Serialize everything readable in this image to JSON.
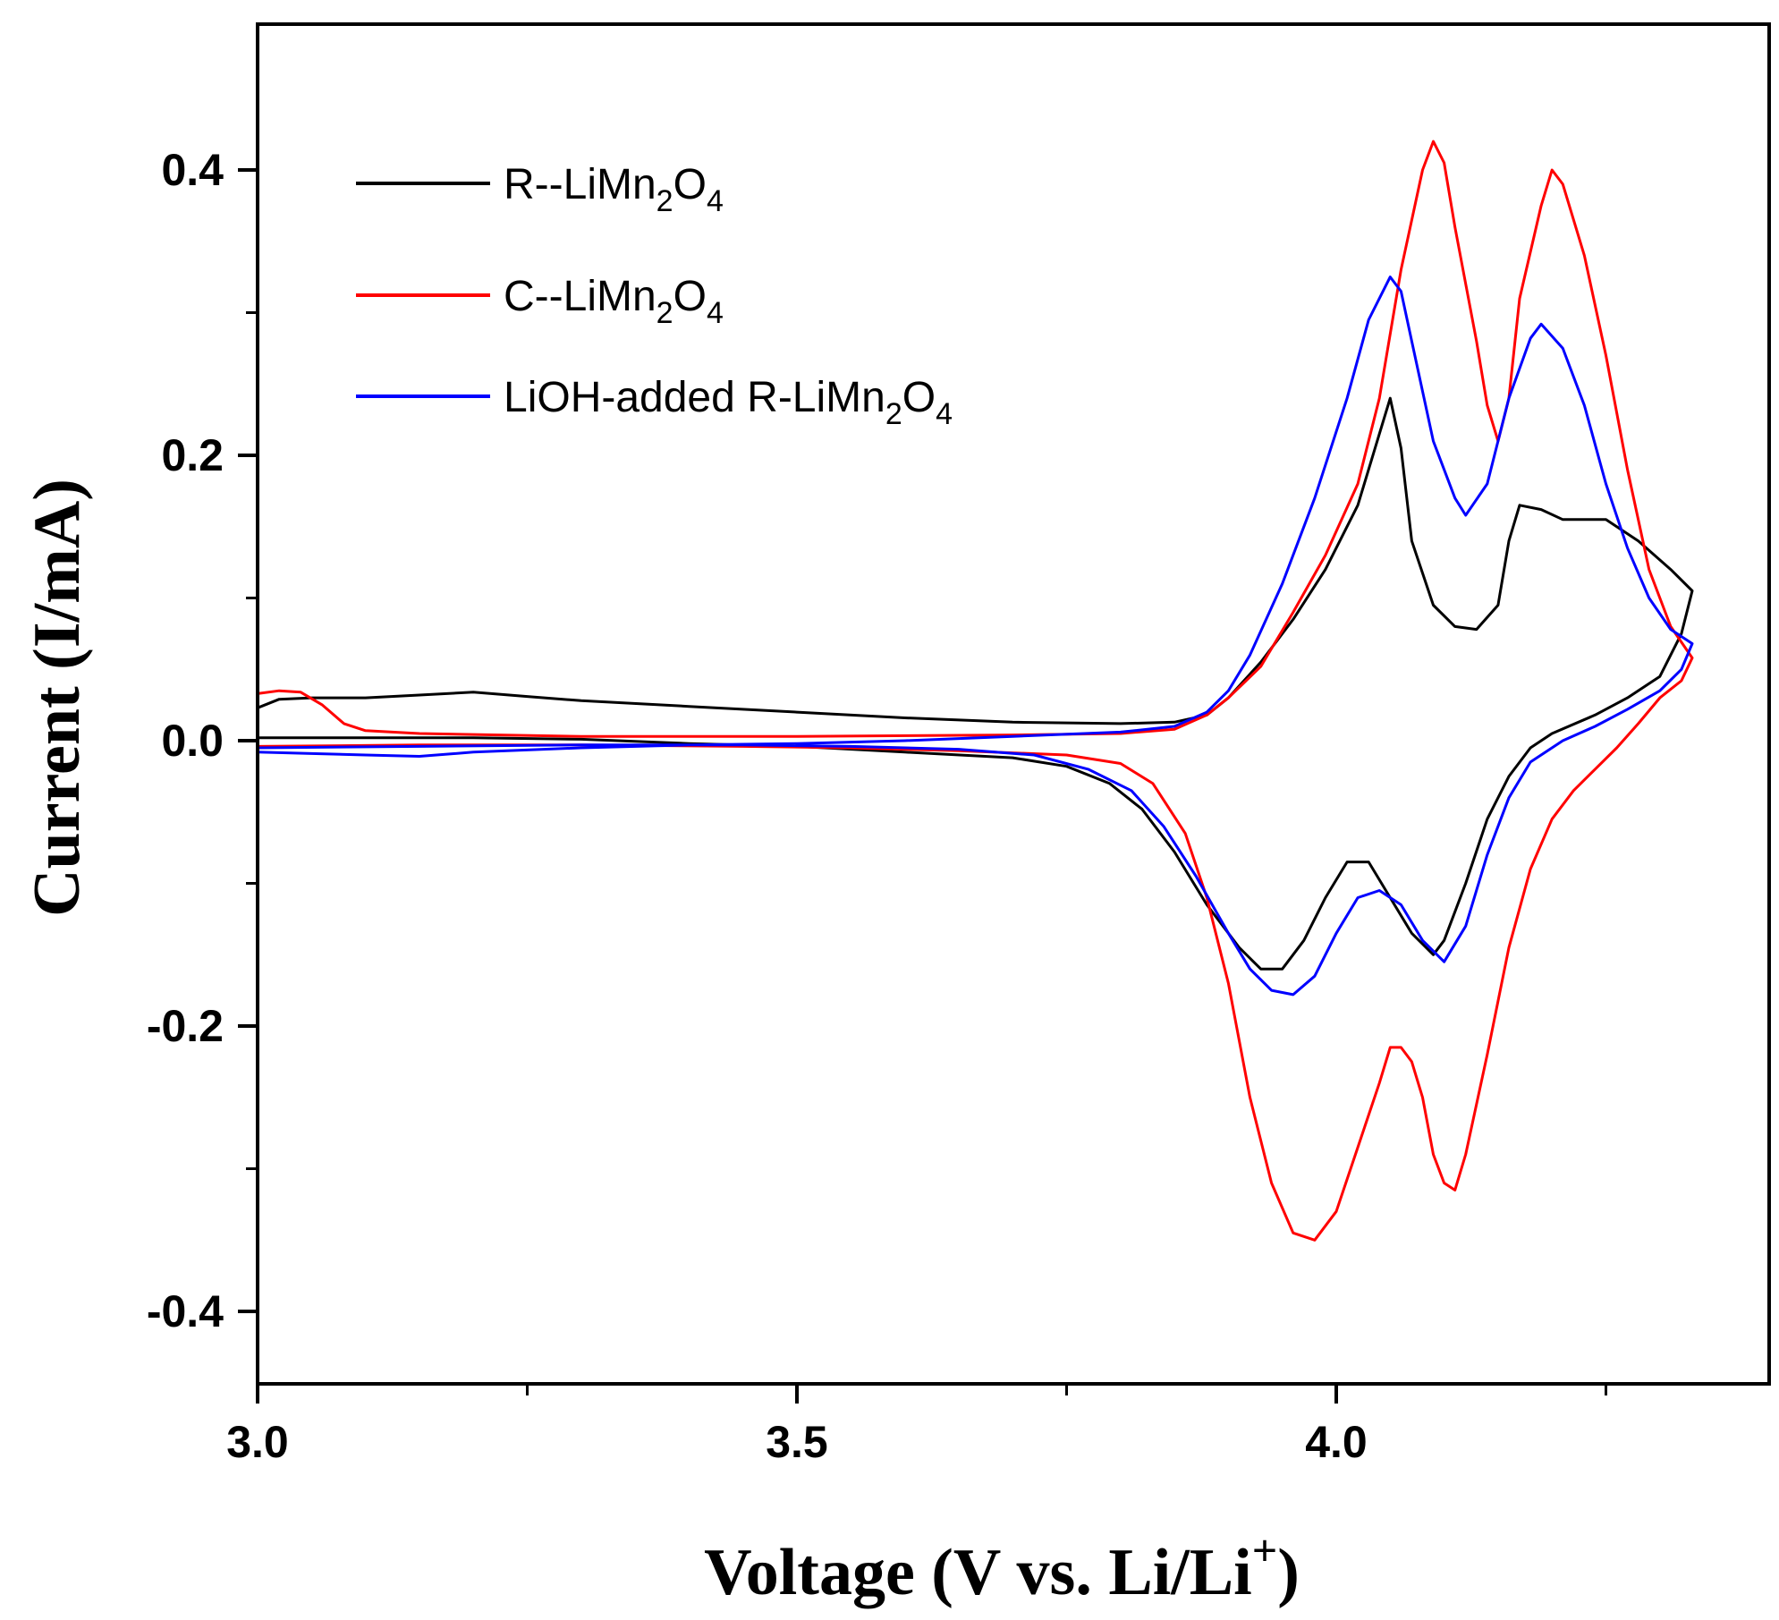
{
  "chart_data": {
    "type": "line",
    "title": "",
    "xlabel": "Voltage (V vs. Li/Li+)",
    "xlabel_parts": {
      "main": "Voltage (V vs. Li/Li",
      "sup": "+",
      "end": ")"
    },
    "ylabel": "Current (I/mA)",
    "xlim": [
      3.0,
      4.4
    ],
    "ylim": [
      -0.45,
      0.5
    ],
    "x_ticks": [
      3.0,
      3.5,
      4.0
    ],
    "x_tick_labels": [
      "3.0",
      "3.5",
      "4.0"
    ],
    "x_minor_ticks": [
      3.25,
      3.75,
      4.25
    ],
    "y_ticks": [
      -0.4,
      -0.2,
      0.0,
      0.2,
      0.4
    ],
    "y_tick_labels": [
      "-0.4",
      "-0.2",
      "0.0",
      "0.2",
      "0.4"
    ],
    "grid": false,
    "legend_position": "top-left",
    "series": [
      {
        "name": "R--LiMn2O4",
        "label_parts": [
          "R--LiMn",
          "2",
          "O",
          "4"
        ],
        "color": "#000000",
        "points": [
          [
            3.0,
            0.023
          ],
          [
            3.02,
            0.029
          ],
          [
            3.05,
            0.03
          ],
          [
            3.1,
            0.03
          ],
          [
            3.15,
            0.032
          ],
          [
            3.2,
            0.034
          ],
          [
            3.25,
            0.031
          ],
          [
            3.3,
            0.028
          ],
          [
            3.4,
            0.024
          ],
          [
            3.5,
            0.02
          ],
          [
            3.6,
            0.016
          ],
          [
            3.7,
            0.013
          ],
          [
            3.8,
            0.012
          ],
          [
            3.85,
            0.013
          ],
          [
            3.88,
            0.018
          ],
          [
            3.9,
            0.03
          ],
          [
            3.93,
            0.055
          ],
          [
            3.96,
            0.085
          ],
          [
            3.99,
            0.12
          ],
          [
            4.02,
            0.165
          ],
          [
            4.04,
            0.215
          ],
          [
            4.05,
            0.24
          ],
          [
            4.06,
            0.205
          ],
          [
            4.07,
            0.14
          ],
          [
            4.09,
            0.095
          ],
          [
            4.11,
            0.08
          ],
          [
            4.13,
            0.078
          ],
          [
            4.15,
            0.095
          ],
          [
            4.16,
            0.14
          ],
          [
            4.17,
            0.165
          ],
          [
            4.19,
            0.162
          ],
          [
            4.21,
            0.155
          ],
          [
            4.25,
            0.155
          ],
          [
            4.28,
            0.14
          ],
          [
            4.31,
            0.12
          ],
          [
            4.33,
            0.105
          ],
          [
            4.32,
            0.075
          ],
          [
            4.3,
            0.045
          ],
          [
            4.27,
            0.03
          ],
          [
            4.24,
            0.018
          ],
          [
            4.2,
            0.005
          ],
          [
            4.18,
            -0.005
          ],
          [
            4.16,
            -0.025
          ],
          [
            4.14,
            -0.055
          ],
          [
            4.12,
            -0.1
          ],
          [
            4.1,
            -0.14
          ],
          [
            4.09,
            -0.15
          ],
          [
            4.07,
            -0.135
          ],
          [
            4.05,
            -0.11
          ],
          [
            4.03,
            -0.085
          ],
          [
            4.01,
            -0.085
          ],
          [
            3.99,
            -0.11
          ],
          [
            3.97,
            -0.14
          ],
          [
            3.95,
            -0.16
          ],
          [
            3.93,
            -0.16
          ],
          [
            3.91,
            -0.145
          ],
          [
            3.88,
            -0.115
          ],
          [
            3.85,
            -0.078
          ],
          [
            3.82,
            -0.048
          ],
          [
            3.79,
            -0.03
          ],
          [
            3.75,
            -0.018
          ],
          [
            3.7,
            -0.012
          ],
          [
            3.6,
            -0.008
          ],
          [
            3.5,
            -0.004
          ],
          [
            3.4,
            -0.002
          ],
          [
            3.3,
            0.001
          ],
          [
            3.2,
            0.002
          ],
          [
            3.1,
            0.002
          ],
          [
            3.0,
            0.002
          ]
        ]
      },
      {
        "name": "C--LiMn2O4",
        "label_parts": [
          "C--LiMn",
          "2",
          "O",
          "4"
        ],
        "color": "#ff0000",
        "points": [
          [
            3.0,
            0.033
          ],
          [
            3.02,
            0.035
          ],
          [
            3.04,
            0.034
          ],
          [
            3.06,
            0.025
          ],
          [
            3.08,
            0.012
          ],
          [
            3.1,
            0.007
          ],
          [
            3.15,
            0.005
          ],
          [
            3.3,
            0.003
          ],
          [
            3.5,
            0.003
          ],
          [
            3.7,
            0.004
          ],
          [
            3.8,
            0.005
          ],
          [
            3.85,
            0.008
          ],
          [
            3.88,
            0.018
          ],
          [
            3.9,
            0.03
          ],
          [
            3.93,
            0.052
          ],
          [
            3.96,
            0.09
          ],
          [
            3.99,
            0.13
          ],
          [
            4.02,
            0.18
          ],
          [
            4.04,
            0.24
          ],
          [
            4.06,
            0.33
          ],
          [
            4.08,
            0.4
          ],
          [
            4.09,
            0.42
          ],
          [
            4.1,
            0.405
          ],
          [
            4.11,
            0.36
          ],
          [
            4.13,
            0.28
          ],
          [
            4.14,
            0.235
          ],
          [
            4.15,
            0.21
          ],
          [
            4.16,
            0.24
          ],
          [
            4.17,
            0.31
          ],
          [
            4.19,
            0.375
          ],
          [
            4.2,
            0.4
          ],
          [
            4.21,
            0.39
          ],
          [
            4.23,
            0.34
          ],
          [
            4.25,
            0.27
          ],
          [
            4.27,
            0.19
          ],
          [
            4.29,
            0.12
          ],
          [
            4.31,
            0.08
          ],
          [
            4.33,
            0.058
          ],
          [
            4.32,
            0.042
          ],
          [
            4.3,
            0.03
          ],
          [
            4.28,
            0.012
          ],
          [
            4.26,
            -0.005
          ],
          [
            4.24,
            -0.02
          ],
          [
            4.22,
            -0.035
          ],
          [
            4.2,
            -0.055
          ],
          [
            4.18,
            -0.09
          ],
          [
            4.16,
            -0.145
          ],
          [
            4.14,
            -0.22
          ],
          [
            4.12,
            -0.29
          ],
          [
            4.11,
            -0.315
          ],
          [
            4.1,
            -0.31
          ],
          [
            4.09,
            -0.29
          ],
          [
            4.08,
            -0.25
          ],
          [
            4.07,
            -0.225
          ],
          [
            4.06,
            -0.215
          ],
          [
            4.05,
            -0.215
          ],
          [
            4.04,
            -0.24
          ],
          [
            4.02,
            -0.285
          ],
          [
            4.0,
            -0.33
          ],
          [
            3.98,
            -0.35
          ],
          [
            3.96,
            -0.345
          ],
          [
            3.94,
            -0.31
          ],
          [
            3.92,
            -0.25
          ],
          [
            3.9,
            -0.17
          ],
          [
            3.88,
            -0.11
          ],
          [
            3.86,
            -0.065
          ],
          [
            3.83,
            -0.03
          ],
          [
            3.8,
            -0.016
          ],
          [
            3.75,
            -0.01
          ],
          [
            3.65,
            -0.007
          ],
          [
            3.55,
            -0.005
          ],
          [
            3.45,
            -0.004
          ],
          [
            3.3,
            -0.003
          ],
          [
            3.15,
            -0.003
          ],
          [
            3.0,
            -0.004
          ]
        ]
      },
      {
        "name": "LiOH-added R-LiMn2O4",
        "label_parts": [
          "LiOH-added R-LiMn",
          "2",
          "O",
          "4"
        ],
        "color": "#0000ff",
        "points": [
          [
            3.0,
            -0.008
          ],
          [
            3.05,
            -0.009
          ],
          [
            3.1,
            -0.01
          ],
          [
            3.15,
            -0.011
          ],
          [
            3.2,
            -0.008
          ],
          [
            3.3,
            -0.005
          ],
          [
            3.4,
            -0.003
          ],
          [
            3.5,
            -0.002
          ],
          [
            3.6,
            0.0
          ],
          [
            3.7,
            0.003
          ],
          [
            3.8,
            0.006
          ],
          [
            3.85,
            0.01
          ],
          [
            3.88,
            0.02
          ],
          [
            3.9,
            0.035
          ],
          [
            3.92,
            0.06
          ],
          [
            3.95,
            0.11
          ],
          [
            3.98,
            0.17
          ],
          [
            4.01,
            0.24
          ],
          [
            4.03,
            0.295
          ],
          [
            4.05,
            0.325
          ],
          [
            4.06,
            0.315
          ],
          [
            4.07,
            0.28
          ],
          [
            4.09,
            0.21
          ],
          [
            4.11,
            0.17
          ],
          [
            4.12,
            0.158
          ],
          [
            4.14,
            0.18
          ],
          [
            4.16,
            0.24
          ],
          [
            4.18,
            0.282
          ],
          [
            4.19,
            0.292
          ],
          [
            4.21,
            0.275
          ],
          [
            4.23,
            0.235
          ],
          [
            4.25,
            0.18
          ],
          [
            4.27,
            0.135
          ],
          [
            4.29,
            0.1
          ],
          [
            4.31,
            0.078
          ],
          [
            4.33,
            0.068
          ],
          [
            4.32,
            0.05
          ],
          [
            4.3,
            0.035
          ],
          [
            4.27,
            0.022
          ],
          [
            4.24,
            0.01
          ],
          [
            4.21,
            0.0
          ],
          [
            4.18,
            -0.015
          ],
          [
            4.16,
            -0.04
          ],
          [
            4.14,
            -0.08
          ],
          [
            4.12,
            -0.13
          ],
          [
            4.1,
            -0.155
          ],
          [
            4.08,
            -0.14
          ],
          [
            4.06,
            -0.115
          ],
          [
            4.04,
            -0.105
          ],
          [
            4.02,
            -0.11
          ],
          [
            4.0,
            -0.135
          ],
          [
            3.98,
            -0.165
          ],
          [
            3.96,
            -0.178
          ],
          [
            3.94,
            -0.175
          ],
          [
            3.92,
            -0.16
          ],
          [
            3.9,
            -0.135
          ],
          [
            3.87,
            -0.095
          ],
          [
            3.84,
            -0.06
          ],
          [
            3.81,
            -0.035
          ],
          [
            3.77,
            -0.02
          ],
          [
            3.72,
            -0.01
          ],
          [
            3.65,
            -0.006
          ],
          [
            3.55,
            -0.004
          ],
          [
            3.45,
            -0.003
          ],
          [
            3.3,
            -0.003
          ],
          [
            3.15,
            -0.004
          ],
          [
            3.0,
            -0.005
          ]
        ]
      }
    ]
  }
}
